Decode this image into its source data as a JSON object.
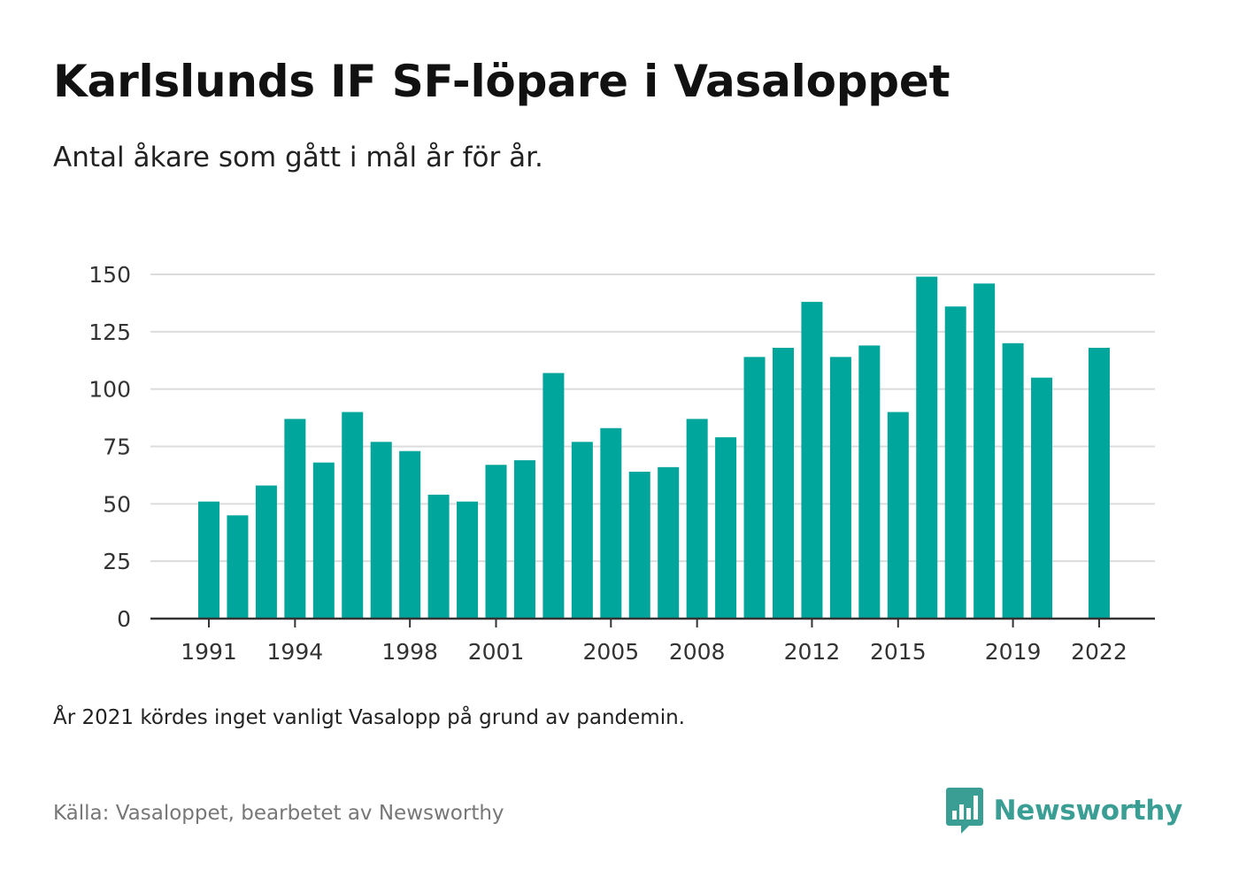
{
  "header": {
    "title": "Karlslunds IF SF-löpare i Vasaloppet",
    "subtitle": "Antal åkare som gått i mål år för år."
  },
  "footer": {
    "note": "År 2021 kördes inget vanligt Vasalopp på grund av pandemin.",
    "source": "Källa: Vasaloppet, bearbetet av Newsworthy",
    "brand": "Newsworthy",
    "brand_icon": "newsworthy-logo-icon"
  },
  "colors": {
    "bar": "#00a59b",
    "grid": "#dcdcdc",
    "axis": "#333333",
    "brand": "#3a9e94"
  },
  "chart_data": {
    "type": "bar",
    "title": "Karlslunds IF SF-löpare i Vasaloppet",
    "subtitle": "Antal åkare som gått i mål år för år.",
    "xlabel": "",
    "ylabel": "",
    "ylim": [
      0,
      150
    ],
    "yticks": [
      0,
      25,
      50,
      75,
      100,
      125,
      150
    ],
    "grid": true,
    "legend": "none",
    "categories": [
      1991,
      1992,
      1993,
      1994,
      1995,
      1996,
      1997,
      1998,
      1999,
      2000,
      2001,
      2002,
      2003,
      2004,
      2005,
      2006,
      2007,
      2008,
      2009,
      2010,
      2011,
      2012,
      2013,
      2014,
      2015,
      2016,
      2017,
      2018,
      2019,
      2020,
      2021,
      2022
    ],
    "values": [
      51,
      45,
      58,
      87,
      68,
      90,
      77,
      73,
      54,
      51,
      67,
      69,
      107,
      77,
      83,
      64,
      66,
      87,
      79,
      114,
      118,
      138,
      114,
      119,
      90,
      149,
      136,
      146,
      120,
      105,
      null,
      118
    ],
    "xtick_labels": [
      1991,
      1994,
      1998,
      2001,
      2005,
      2008,
      2012,
      2015,
      2019,
      2022
    ]
  }
}
